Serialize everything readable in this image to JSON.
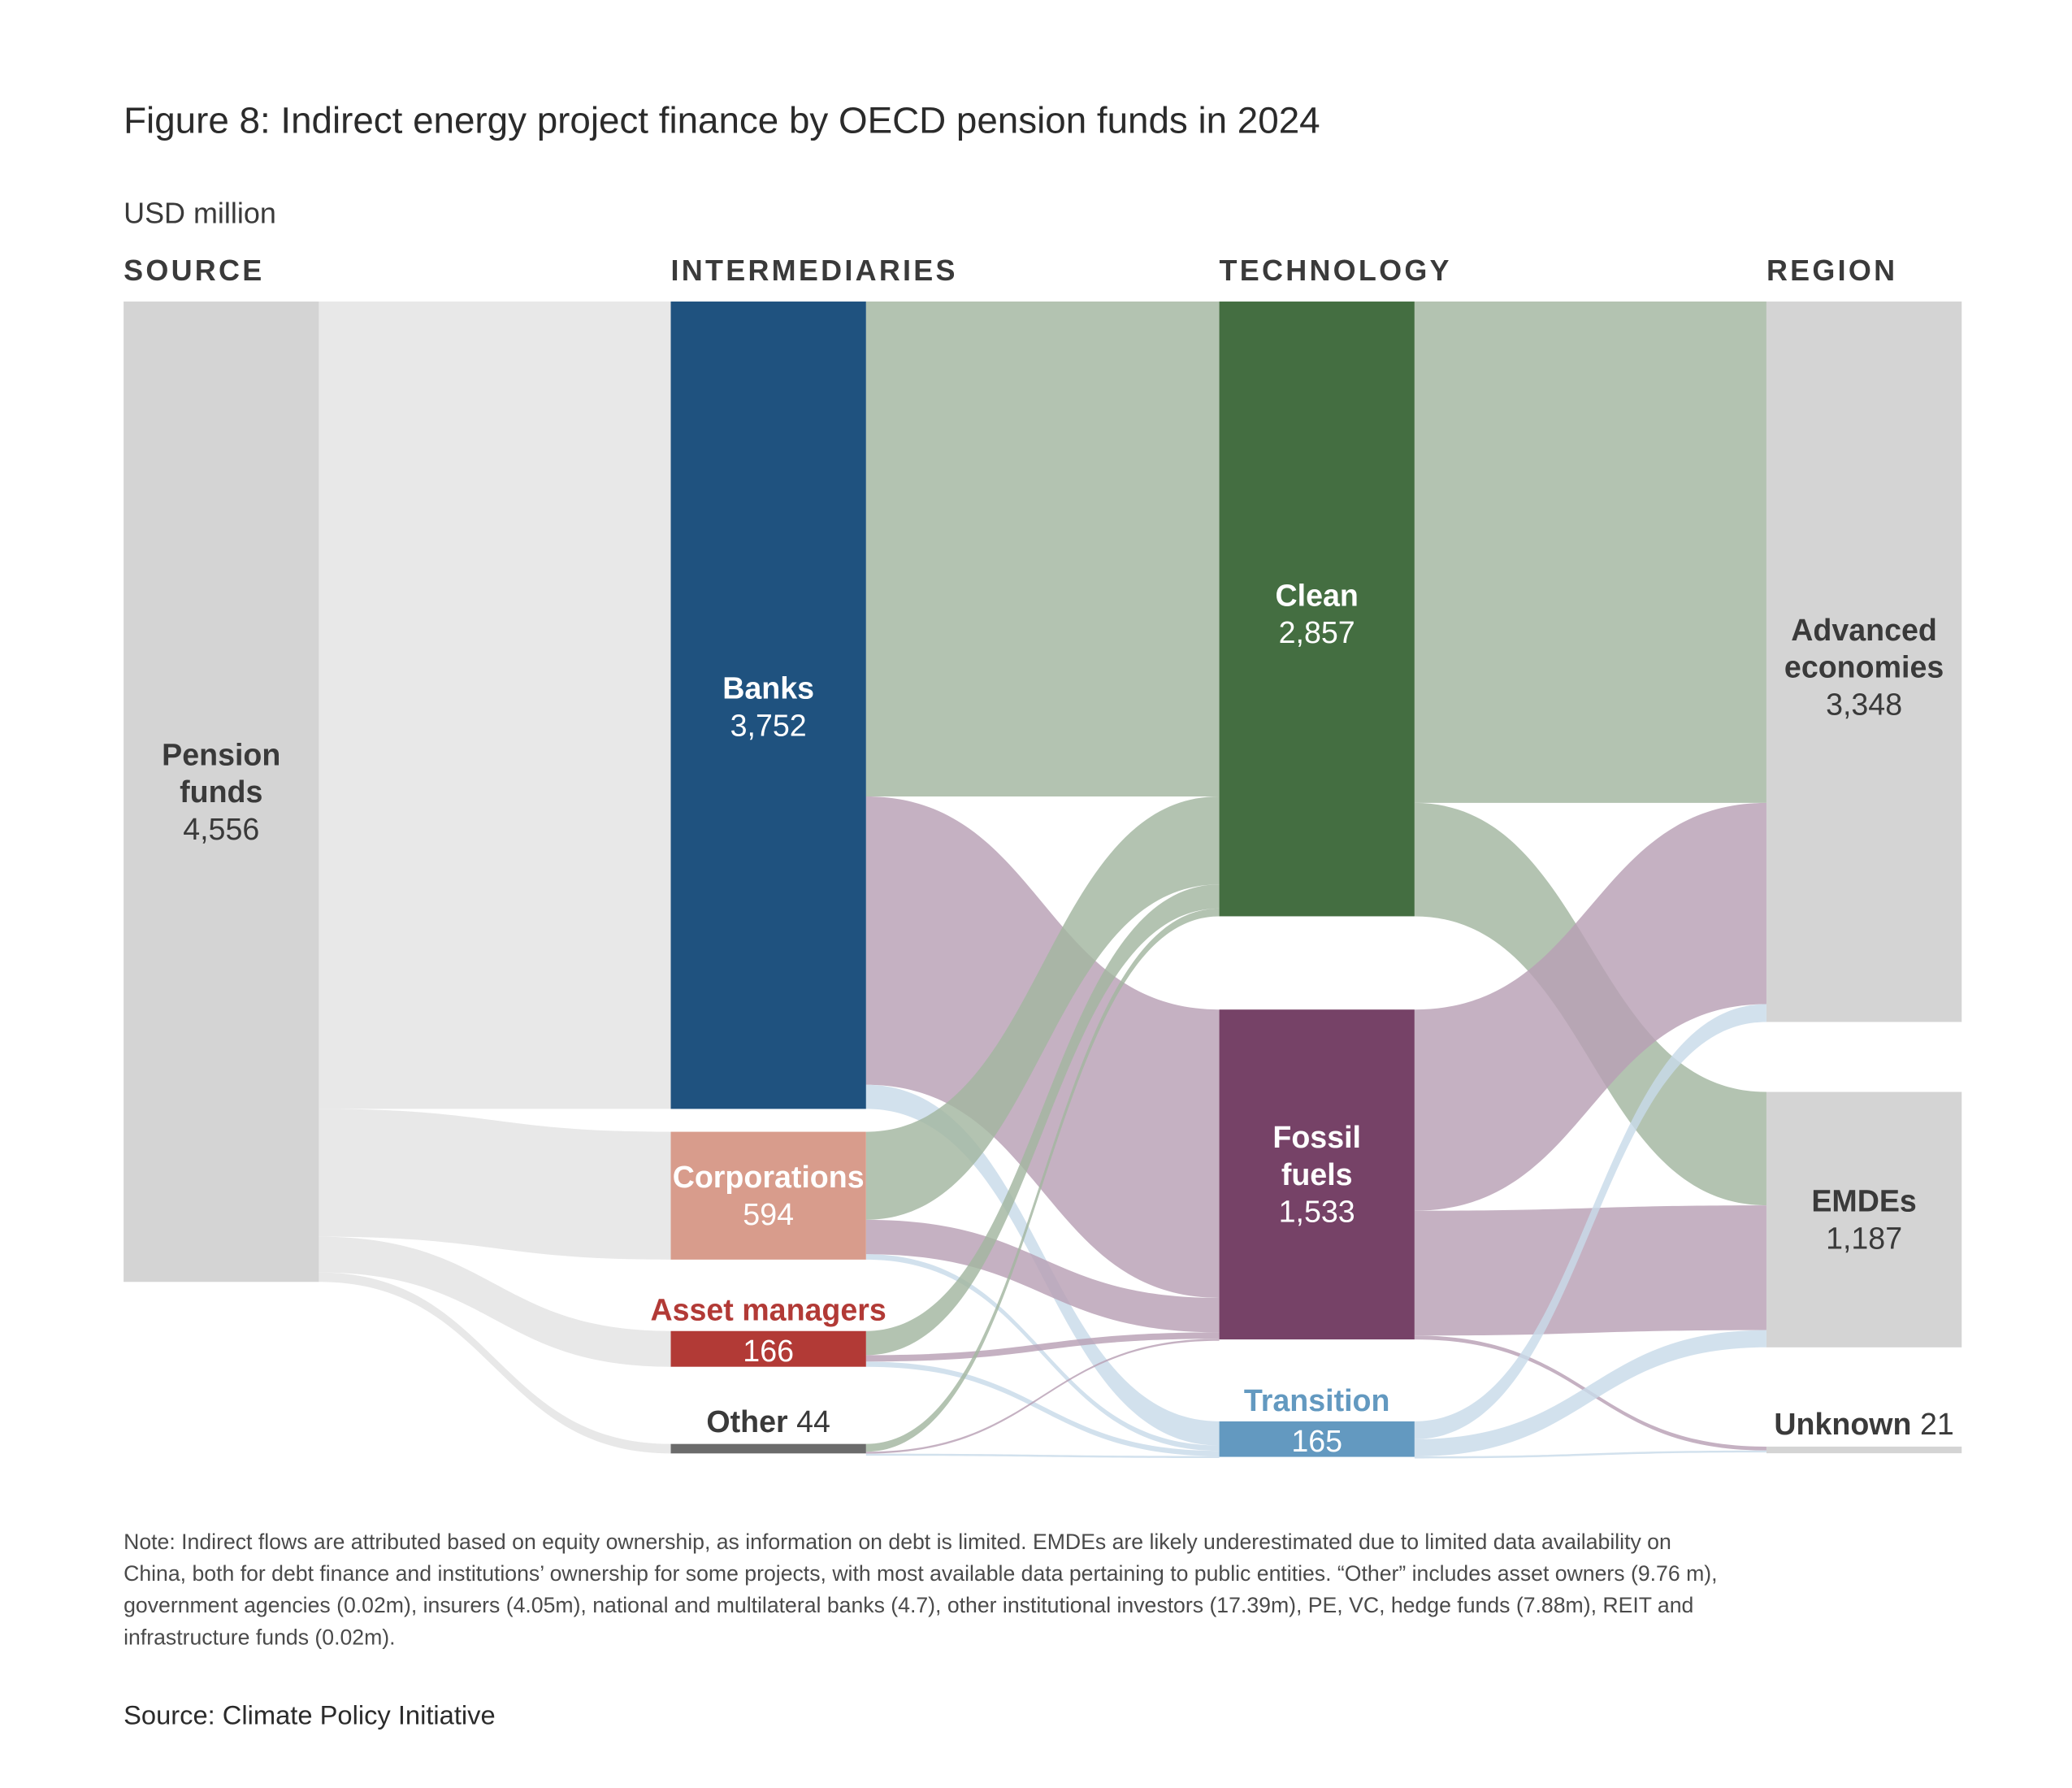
{
  "chart_data": {
    "type": "sankey",
    "title": "Figure 8: Indirect energy project finance by OECD pension funds in 2024",
    "unit_label": "USD million",
    "columns": [
      "SOURCE",
      "INTERMEDIARIES",
      "TECHNOLOGY",
      "REGION"
    ],
    "nodes": [
      {
        "id": "pension",
        "col": 0,
        "label": [
          "Pension",
          "funds"
        ],
        "value": 4556,
        "value_label": "4,556",
        "color": "#d4d4d4",
        "text_color": "#3a3a3a"
      },
      {
        "id": "banks",
        "col": 1,
        "label": [
          "Banks"
        ],
        "value": 3752,
        "value_label": "3,752",
        "color": "#1f527f",
        "text_color": "#ffffff"
      },
      {
        "id": "corporations",
        "col": 1,
        "label": [
          "Corporations"
        ],
        "value": 594,
        "value_label": "594",
        "color": "#d89c8c",
        "text_color": "#ffffff"
      },
      {
        "id": "asset_managers",
        "col": 1,
        "label": [
          "Asset managers"
        ],
        "value": 166,
        "value_label": "166",
        "color": "#b23a36",
        "text_color": "#ffffff"
      },
      {
        "id": "other",
        "col": 1,
        "label": [
          "Other"
        ],
        "value": 44,
        "value_label": "44",
        "color": "#6b6b6b",
        "text_color": "#3a3a3a"
      },
      {
        "id": "clean",
        "col": 2,
        "label": [
          "Clean"
        ],
        "value": 2857,
        "value_label": "2,857",
        "color": "#446e41",
        "text_color": "#ffffff"
      },
      {
        "id": "fossil",
        "col": 2,
        "label": [
          "Fossil",
          "fuels"
        ],
        "value": 1533,
        "value_label": "1,533",
        "color": "#764267",
        "text_color": "#ffffff"
      },
      {
        "id": "transition",
        "col": 2,
        "label": [
          "Transition"
        ],
        "value": 165,
        "value_label": "165",
        "color": "#6399c0",
        "text_color": "#ffffff"
      },
      {
        "id": "advanced",
        "col": 3,
        "label": [
          "Advanced",
          "economies"
        ],
        "value": 3348,
        "value_label": "3,348",
        "color": "#d4d4d4",
        "text_color": "#3a3a3a"
      },
      {
        "id": "emdes",
        "col": 3,
        "label": [
          "EMDEs"
        ],
        "value": 1187,
        "value_label": "1,187",
        "color": "#d4d4d4",
        "text_color": "#3a3a3a"
      },
      {
        "id": "unknown",
        "col": 3,
        "label": [
          "Unknown"
        ],
        "value": 21,
        "value_label": "21",
        "color": "#d4d4d4",
        "text_color": "#3a3a3a"
      }
    ],
    "links": [
      {
        "source": "pension",
        "target": "banks",
        "value": 3752,
        "color": "#e8e8e8"
      },
      {
        "source": "pension",
        "target": "corporations",
        "value": 594,
        "color": "#e8e8e8"
      },
      {
        "source": "pension",
        "target": "asset_managers",
        "value": 166,
        "color": "#e8e8e8"
      },
      {
        "source": "pension",
        "target": "other",
        "value": 44,
        "color": "#e8e8e8"
      },
      {
        "source": "banks",
        "target": "clean",
        "value": 2300,
        "color": "#a2b6a0"
      },
      {
        "source": "banks",
        "target": "fossil",
        "value": 1340,
        "color": "#b8a0b4"
      },
      {
        "source": "banks",
        "target": "transition",
        "value": 112,
        "color": "#c8dbe9"
      },
      {
        "source": "corporations",
        "target": "clean",
        "value": 409,
        "color": "#a2b6a0"
      },
      {
        "source": "corporations",
        "target": "fossil",
        "value": 160,
        "color": "#b8a0b4"
      },
      {
        "source": "corporations",
        "target": "transition",
        "value": 25,
        "color": "#c8dbe9"
      },
      {
        "source": "asset_managers",
        "target": "clean",
        "value": 112,
        "color": "#a2b6a0"
      },
      {
        "source": "asset_managers",
        "target": "fossil",
        "value": 30,
        "color": "#b8a0b4"
      },
      {
        "source": "asset_managers",
        "target": "transition",
        "value": 24,
        "color": "#c8dbe9"
      },
      {
        "source": "other",
        "target": "clean",
        "value": 36,
        "color": "#a2b6a0"
      },
      {
        "source": "other",
        "target": "fossil",
        "value": 3,
        "color": "#b8a0b4"
      },
      {
        "source": "other",
        "target": "transition",
        "value": 4,
        "color": "#c8dbe9"
      },
      {
        "source": "clean",
        "target": "advanced",
        "value": 2330,
        "color": "#a2b6a0"
      },
      {
        "source": "clean",
        "target": "emdes",
        "value": 527,
        "color": "#a2b6a0"
      },
      {
        "source": "fossil",
        "target": "advanced",
        "value": 935,
        "color": "#b8a0b4"
      },
      {
        "source": "fossil",
        "target": "emdes",
        "value": 580,
        "color": "#b8a0b4"
      },
      {
        "source": "fossil",
        "target": "unknown",
        "value": 18,
        "color": "#b8a0b4"
      },
      {
        "source": "transition",
        "target": "advanced",
        "value": 83,
        "color": "#c8dbe9"
      },
      {
        "source": "transition",
        "target": "emdes",
        "value": 80,
        "color": "#c8dbe9"
      },
      {
        "source": "transition",
        "target": "unknown",
        "value": 2,
        "color": "#c8dbe9"
      }
    ]
  },
  "note": "Note: Indirect flows are attributed based on equity ownership, as information on debt is limited. EMDEs are likely underestimated due to limited data availability on China, both for debt finance and institutions’ ownership for some projects, with most available data pertaining to public entities. “Other” includes asset owners (9.76 m), government agencies (0.02m), insurers (4.05m), national and multilateral banks (4.7), other institutional investors (17.39m), PE, VC, hedge funds (7.88m), REIT and infrastructure funds (0.02m).",
  "note_lines": [
    "Note: Indirect flows are attributed based on equity ownership, as information on debt is limited. EMDEs are likely underestimated due to limited data availability on",
    "China, both for debt finance and institutions’ ownership for some projects, with most available data pertaining to public entities. “Other” includes asset owners (9.76 m),",
    "government agencies (0.02m), insurers (4.05m), national and multilateral banks (4.7), other institutional investors (17.39m), PE, VC, hedge funds (7.88m), REIT and",
    "infrastructure funds (0.02m)."
  ],
  "source": "Source: Climate Policy Initiative"
}
